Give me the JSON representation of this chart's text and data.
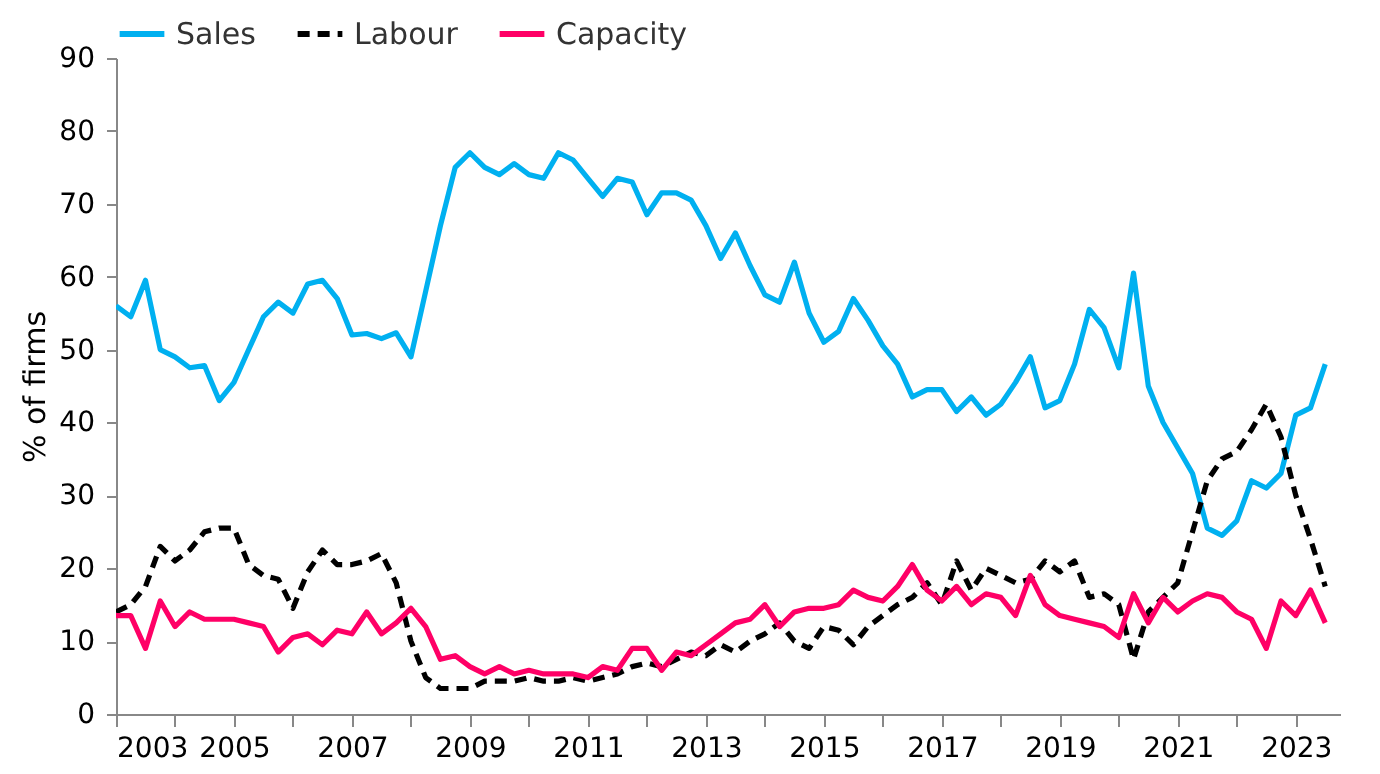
{
  "chart_data": {
    "type": "line",
    "ylabel": "% of firms",
    "legend": "top",
    "grid": false,
    "marker": "none",
    "ylim": [
      0,
      90
    ],
    "yticks": [
      0,
      10,
      20,
      30,
      40,
      50,
      60,
      70,
      80,
      90
    ],
    "xlim": [
      2003,
      2023.75
    ],
    "xticks": [
      2003,
      {
        "value": 2004,
        "label": null
      },
      2005,
      {
        "value": 2006,
        "label": null
      },
      2007,
      {
        "value": 2008,
        "label": null
      },
      2009,
      {
        "value": 2010,
        "label": null
      },
      2011,
      {
        "value": 2012,
        "label": null
      },
      2013,
      {
        "value": 2014,
        "label": null
      },
      2015,
      {
        "value": 2016,
        "label": null
      },
      2017,
      {
        "value": 2018,
        "label": null
      },
      2019,
      {
        "value": 2020,
        "label": null
      },
      2021,
      {
        "value": 2022,
        "label": null
      },
      2023
    ],
    "x": [
      2003,
      2003.25,
      2003.5,
      2003.75,
      2004,
      2004.25,
      2004.5,
      2004.75,
      2005,
      2005.25,
      2005.5,
      2005.75,
      2006,
      2006.25,
      2006.5,
      2006.75,
      2007,
      2007.25,
      2007.5,
      2007.75,
      2008,
      2008.25,
      2008.5,
      2008.75,
      2009,
      2009.25,
      2009.5,
      2009.75,
      2010,
      2010.25,
      2010.5,
      2010.75,
      2011,
      2011.25,
      2011.5,
      2011.75,
      2012,
      2012.25,
      2012.5,
      2012.75,
      2013,
      2013.25,
      2013.5,
      2013.75,
      2014,
      2014.25,
      2014.5,
      2014.75,
      2015,
      2015.25,
      2015.5,
      2015.75,
      2016,
      2016.25,
      2016.5,
      2016.75,
      2017,
      2017.25,
      2017.5,
      2017.75,
      2018,
      2018.25,
      2018.5,
      2018.75,
      2019,
      2019.25,
      2019.5,
      2019.75,
      2020,
      2020.25,
      2020.5,
      2020.75,
      2021,
      2021.25,
      2021.5,
      2021.75,
      2022,
      2022.25,
      2022.5,
      2022.75,
      2023,
      2023.25,
      2023.5
    ],
    "series": [
      {
        "name": "Sales",
        "color": "#00b0f0",
        "line_style": "solid",
        "values": [
          56,
          54.5,
          59.5,
          50,
          49,
          47.5,
          47.8,
          43,
          45.5,
          50,
          54.5,
          56.5,
          55,
          59,
          59.5,
          57,
          52,
          52.2,
          51.5,
          52.3,
          49,
          58,
          67,
          75,
          77,
          75,
          74,
          75.5,
          74,
          73.5,
          77,
          76,
          73.5,
          71,
          73.5,
          73,
          68.5,
          71.5,
          71.5,
          70.5,
          67,
          62.5,
          66,
          61.5,
          57.5,
          56.5,
          62,
          55,
          51,
          52.5,
          57,
          54,
          50.5,
          48,
          43.5,
          44.5,
          44.5,
          41.5,
          43.5,
          41,
          42.5,
          45.5,
          49,
          42,
          43,
          48,
          55.5,
          53,
          47.5,
          60.5,
          45,
          40,
          36.5,
          33,
          25.5,
          24.5,
          26.5,
          32,
          31,
          33,
          41,
          42,
          48
        ]
      },
      {
        "name": "Labour",
        "color": "#000000",
        "line_style": "dashed",
        "values": [
          14,
          15,
          17.5,
          23,
          21,
          22.5,
          25,
          25.5,
          25.5,
          20.5,
          19,
          18.5,
          14.5,
          19.5,
          22.5,
          20.5,
          20.5,
          21,
          22,
          18,
          10,
          5,
          3.5,
          3.5,
          3.5,
          4.5,
          4.5,
          4.5,
          5,
          4.5,
          4.5,
          5,
          4.5,
          5,
          5.5,
          6.5,
          7,
          6.5,
          7.5,
          8.5,
          8,
          9.5,
          8.5,
          10,
          11,
          12.5,
          10,
          9,
          12,
          11.5,
          9.5,
          12,
          13.5,
          15,
          16,
          18,
          15,
          21,
          17,
          20,
          19,
          18,
          18.5,
          21,
          19.5,
          21,
          16,
          16.5,
          15,
          7.5,
          14,
          16,
          18,
          25,
          32,
          35,
          36,
          39,
          42.5,
          38,
          30,
          24,
          17.5
        ]
      },
      {
        "name": "Capacity",
        "color": "#ff0066",
        "line_style": "solid",
        "values": [
          13.5,
          13.5,
          9,
          15.5,
          12,
          14,
          13,
          13,
          13,
          12.5,
          12,
          8.5,
          10.5,
          11,
          9.5,
          11.5,
          11,
          14,
          11,
          12.5,
          14.5,
          12,
          7.5,
          8,
          6.5,
          5.5,
          6.5,
          5.5,
          6,
          5.5,
          5.5,
          5.5,
          5,
          6.5,
          6,
          9,
          9,
          6,
          8.5,
          8,
          9.5,
          11,
          12.5,
          13,
          15,
          12,
          14,
          14.5,
          14.5,
          15,
          17,
          16,
          15.5,
          17.5,
          20.5,
          17,
          15.5,
          17.5,
          15,
          16.5,
          16,
          13.5,
          19,
          15,
          13.5,
          13,
          12.5,
          12,
          10.5,
          16.5,
          12.5,
          16,
          14,
          15.5,
          16.5,
          16,
          14,
          13,
          9,
          15.5,
          13.5,
          17,
          12.5
        ]
      }
    ]
  }
}
